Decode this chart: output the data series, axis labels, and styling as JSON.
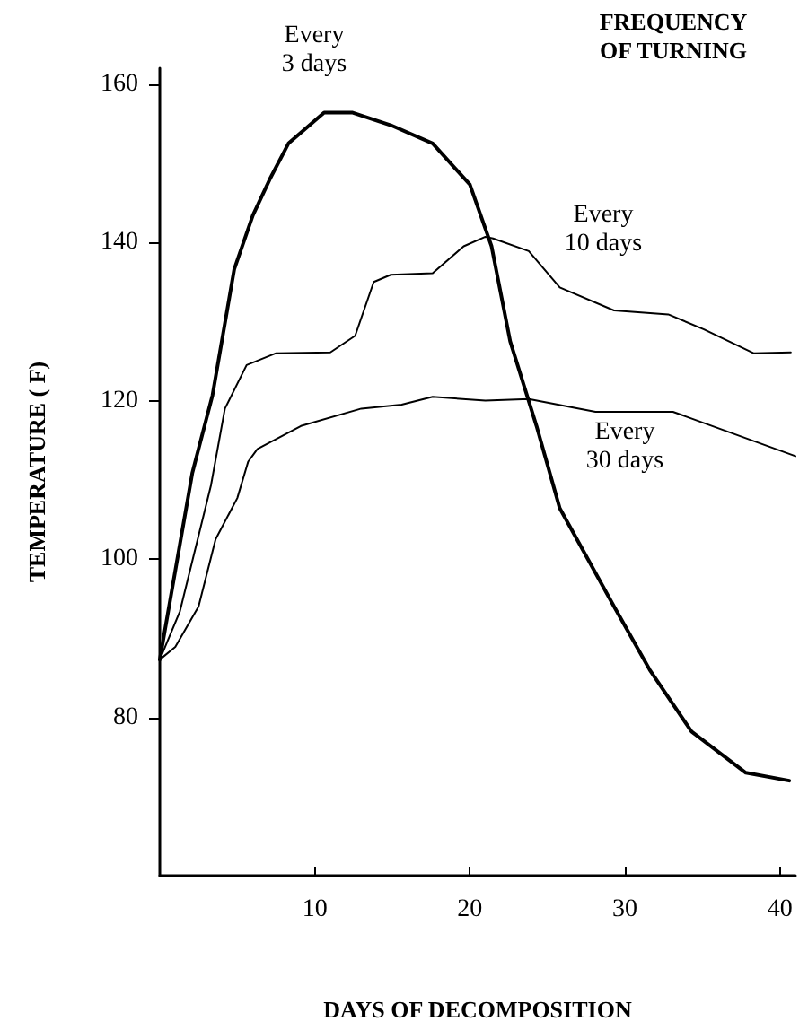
{
  "chart_data": {
    "type": "line",
    "xlabel": "DAYS OF DECOMPOSITION",
    "ylabel": "TEMPERATURE ( F)",
    "xlim": [
      0,
      41
    ],
    "xticks": [
      10,
      20,
      30,
      40
    ],
    "ylim": [
      60,
      162
    ],
    "yticks": [
      80,
      100,
      120,
      140,
      160
    ],
    "grid": false,
    "marker": "none",
    "line_style": "solid",
    "annotations": [
      "FREQUENCY\nOF TURNING",
      "Every\n3 days",
      "Every\n10 days",
      "Every\n30 days"
    ],
    "series": [
      {
        "color": "#000000",
        "x": [
          0,
          2.1,
          3.4,
          4.8,
          6.0,
          7.1,
          8.3,
          10.6,
          12.4,
          14.9,
          17.6,
          20.0,
          21.4,
          22.6,
          24.3,
          25.8,
          29.3,
          31.6,
          34.3,
          37.8,
          40.6
        ],
        "values": [
          87.3,
          110.9,
          120.7,
          136.6,
          143.4,
          148,
          152.5,
          156.4,
          156.4,
          154.8,
          152.5,
          147.3,
          139.5,
          127.5,
          116.8,
          106.4,
          94,
          86,
          78.2,
          73,
          72
        ]
      },
      {
        "color": "#000000",
        "x": [
          0,
          1.3,
          3.3,
          4.2,
          5.6,
          7.5,
          11,
          12.6,
          13.8,
          14.9,
          17.6,
          19.6,
          21,
          21.5,
          23.8,
          25.8,
          29.3,
          32.8,
          35.1,
          38.3,
          40.7
        ],
        "values": [
          87.3,
          93.4,
          109.3,
          119,
          124.5,
          126,
          126.1,
          128.2,
          135,
          135.9,
          136.1,
          139.5,
          140.7,
          140.5,
          138.9,
          134.3,
          131.4,
          130.9,
          129,
          126,
          126.1
        ]
      },
      {
        "color": "#000000",
        "x": [
          0,
          1,
          2.5,
          3.6,
          5,
          5.7,
          6.3,
          9.1,
          13,
          15.6,
          17.6,
          21,
          23.8,
          28.1,
          33.1,
          41
        ],
        "values": [
          87.3,
          88.9,
          94,
          102.5,
          107.7,
          112.3,
          113.9,
          116.8,
          119,
          119.5,
          120.5,
          120,
          120.2,
          118.6,
          118.6,
          113
        ]
      }
    ]
  }
}
